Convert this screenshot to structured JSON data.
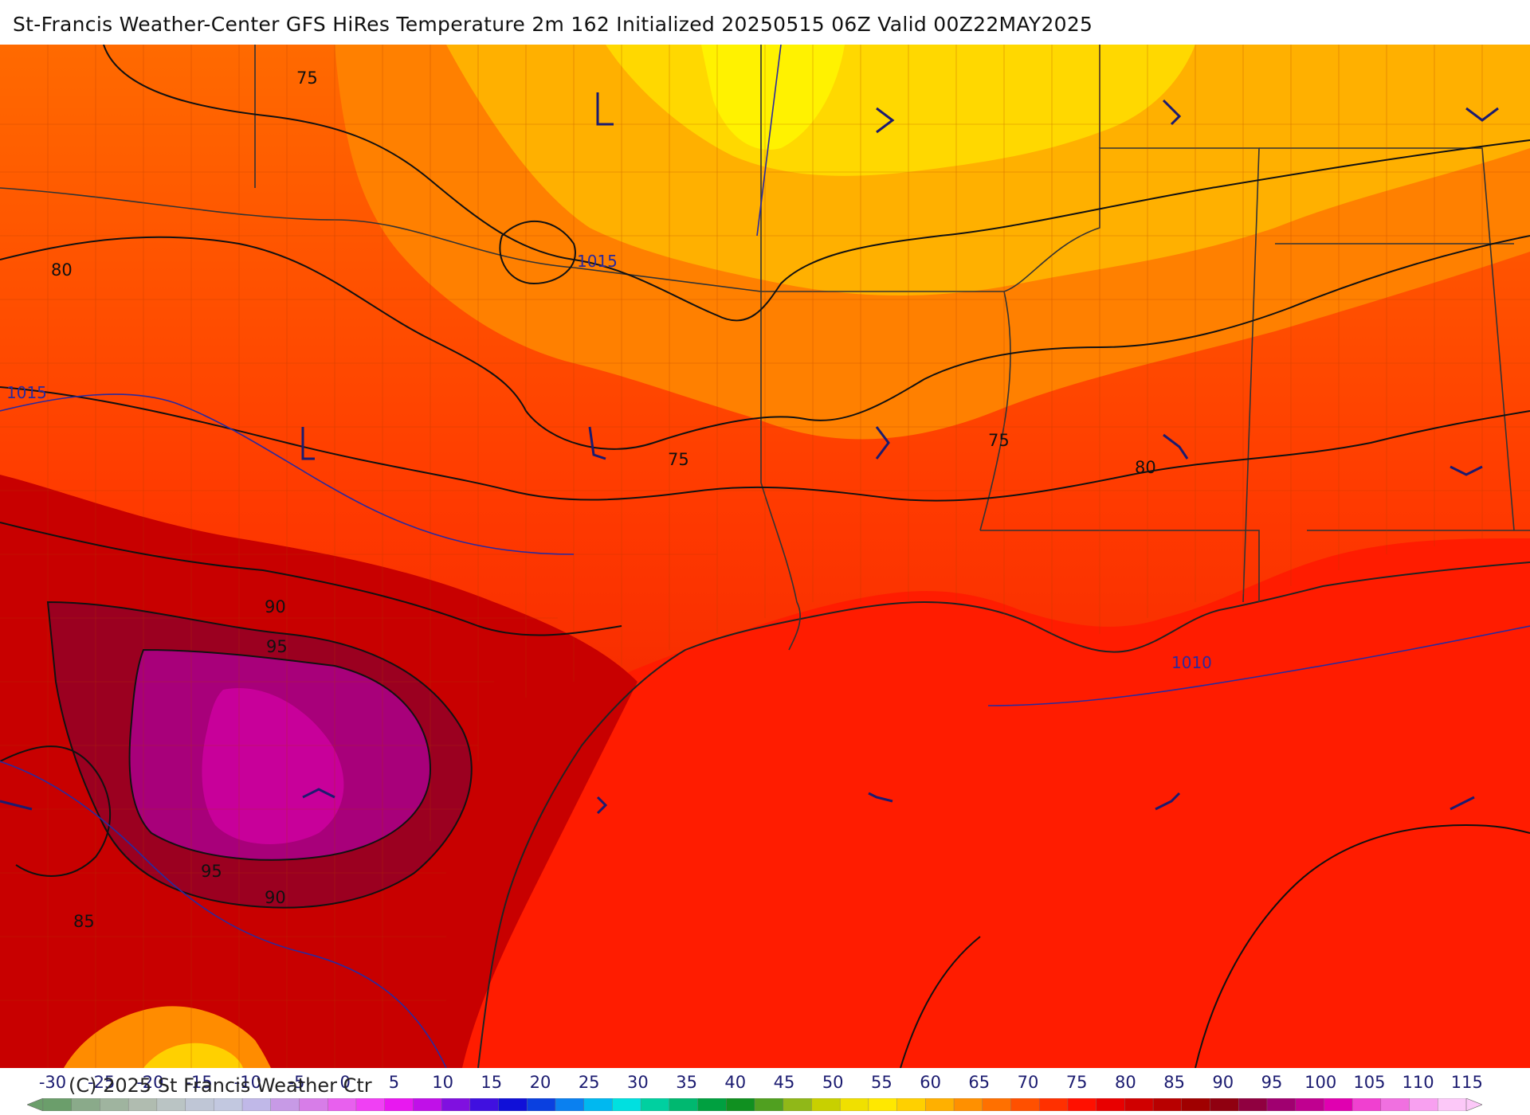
{
  "header": {
    "title": "St-Francis Weather-Center GFS HiRes Temperature 2m  162 Initialized 20250515 06Z Valid 00Z22MAY2025"
  },
  "map": {
    "temperature_contour_labels": [
      "75",
      "75",
      "75",
      "80",
      "80",
      "85",
      "90",
      "90",
      "95",
      "95"
    ],
    "pressure_contour_labels": [
      "1015",
      "1015",
      "1010"
    ],
    "colors": {
      "t75": "#ffd200",
      "t80": "#ff8c00",
      "t85": "#ff3a00",
      "t90": "#c80000",
      "t95": "#8b0025",
      "t100": "#c00080",
      "gulf": "#ff1a00",
      "border": "#333333",
      "pressure": "#2a2a9e"
    }
  },
  "colorbar": {
    "ticks": [
      "-30",
      "-25",
      "-20",
      "-15",
      "-10",
      "-5",
      "0",
      "5",
      "10",
      "15",
      "20",
      "25",
      "30",
      "35",
      "40",
      "45",
      "50",
      "55",
      "60",
      "65",
      "70",
      "75",
      "80",
      "85",
      "90",
      "95",
      "100",
      "105",
      "110",
      "115"
    ],
    "copyright": "(C) 2025 St Francis Weather Ctr",
    "colors": [
      "#6b9e6b",
      "#8aaa8a",
      "#9fb49f",
      "#b0bcb0",
      "#bac4c4",
      "#bfc6d6",
      "#c2c8e0",
      "#c0b8e8",
      "#c79ae6",
      "#d77de8",
      "#e860ee",
      "#f040f4",
      "#e818f0",
      "#c010e8",
      "#8010e0",
      "#4010e0",
      "#1010d8",
      "#0a40e0",
      "#0a80f0",
      "#00b8f0",
      "#00e0e0",
      "#00d0a0",
      "#00b870",
      "#00a040",
      "#109020",
      "#50a020",
      "#90b818",
      "#c8d000",
      "#f0e000",
      "#ffe800",
      "#ffd000",
      "#ffb000",
      "#ff9000",
      "#ff7000",
      "#ff5000",
      "#ff3000",
      "#ff1000",
      "#e80000",
      "#d00000",
      "#b80000",
      "#a00000",
      "#900010",
      "#900040",
      "#a00070",
      "#c00090",
      "#e000b0",
      "#f040d0",
      "#f070e0",
      "#f8a0f0",
      "#fcc8f8"
    ]
  }
}
